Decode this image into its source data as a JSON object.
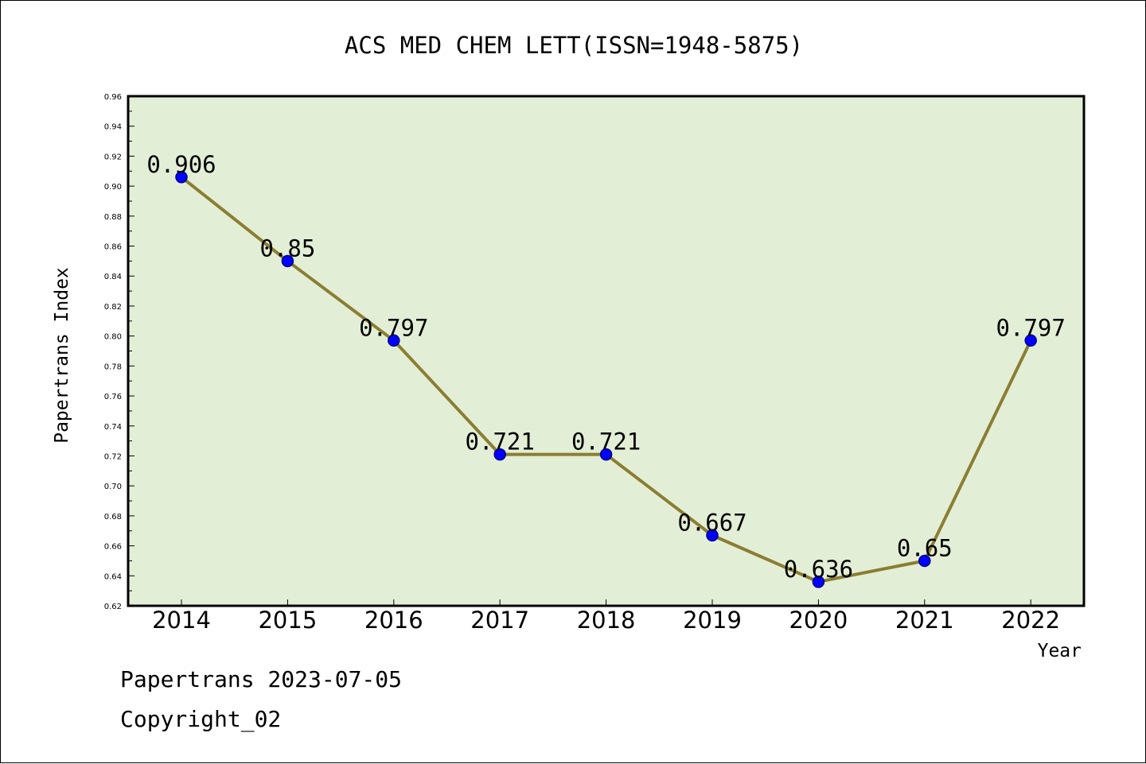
{
  "chart_data": {
    "type": "line",
    "title": "ACS MED CHEM LETT(ISSN=1948-5875)",
    "xlabel": "Year",
    "ylabel": "Papertrans Index",
    "categories": [
      "2014",
      "2015",
      "2016",
      "2017",
      "2018",
      "2019",
      "2020",
      "2021",
      "2022"
    ],
    "values": [
      0.906,
      0.85,
      0.797,
      0.721,
      0.721,
      0.667,
      0.636,
      0.65,
      0.797
    ],
    "data_labels": [
      "0.906",
      "0.85",
      "0.797",
      "0.721",
      "0.721",
      "0.667",
      "0.636",
      "0.65",
      "0.797"
    ],
    "ylim": [
      0.62,
      0.96
    ],
    "yticks": [
      "0.62",
      "0.64",
      "0.66",
      "0.68",
      "0.70",
      "0.72",
      "0.74",
      "0.76",
      "0.78",
      "0.80",
      "0.82",
      "0.84",
      "0.86",
      "0.88",
      "0.90",
      "0.92",
      "0.94",
      "0.96"
    ],
    "grid": false,
    "colors": {
      "plot_background": "#e2efd6",
      "line": "#8b7d32",
      "marker": "#0000ff",
      "marker_edge": "#000080"
    }
  },
  "footer": {
    "line1": "Papertrans 2023-07-05",
    "line2": "Copyright_02"
  }
}
